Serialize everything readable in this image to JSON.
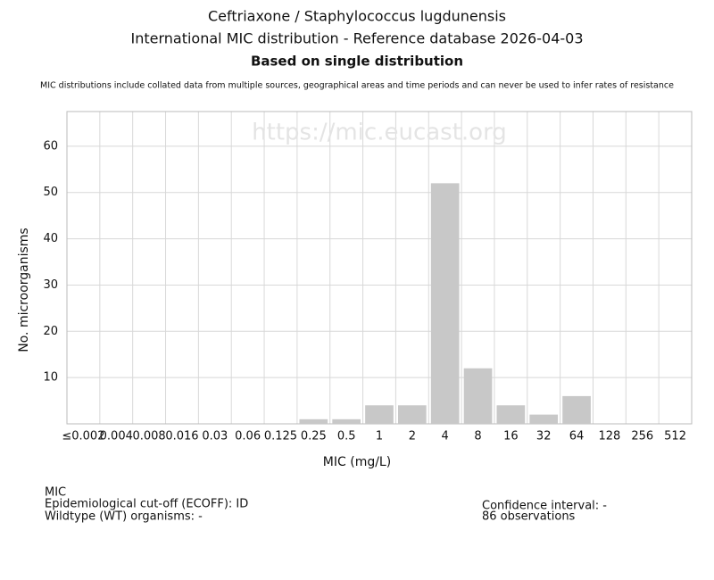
{
  "chart_data": {
    "type": "bar",
    "title": "Ceftriaxone / Staphylococcus lugdunensis",
    "subtitle": "International MIC distribution - Reference database 2026-04-03",
    "subtitle2": "Based on single distribution",
    "note": "MIC distributions include collated data from multiple sources, geographical areas and time periods and can never be used to infer rates of resistance",
    "watermark": "https://mic.eucast.org",
    "x_label": "MIC (mg/L)",
    "y_label": "No. microorganisms",
    "categories": [
      "≤0.002",
      "0.004",
      "0.008",
      "0.016",
      "0.03",
      "0.06",
      "0.125",
      "0.25",
      "0.5",
      "1",
      "2",
      "4",
      "8",
      "16",
      "32",
      "64",
      "128",
      "256",
      "512"
    ],
    "values": [
      0,
      0,
      0,
      0,
      0,
      0,
      0,
      1,
      1,
      4,
      4,
      52,
      12,
      4,
      2,
      6,
      0,
      0,
      0
    ],
    "color": "#c8c8c8",
    "ylim": [
      0,
      67.5
    ],
    "yticks": [
      10,
      20,
      30,
      40,
      50,
      60
    ],
    "grid": true
  },
  "footer": {
    "left": [
      "MIC",
      "Epidemiological cut-off (ECOFF): ID",
      "Wildtype (WT) organisms:  -"
    ],
    "right": [
      "Confidence interval: -",
      "86 observations"
    ]
  }
}
